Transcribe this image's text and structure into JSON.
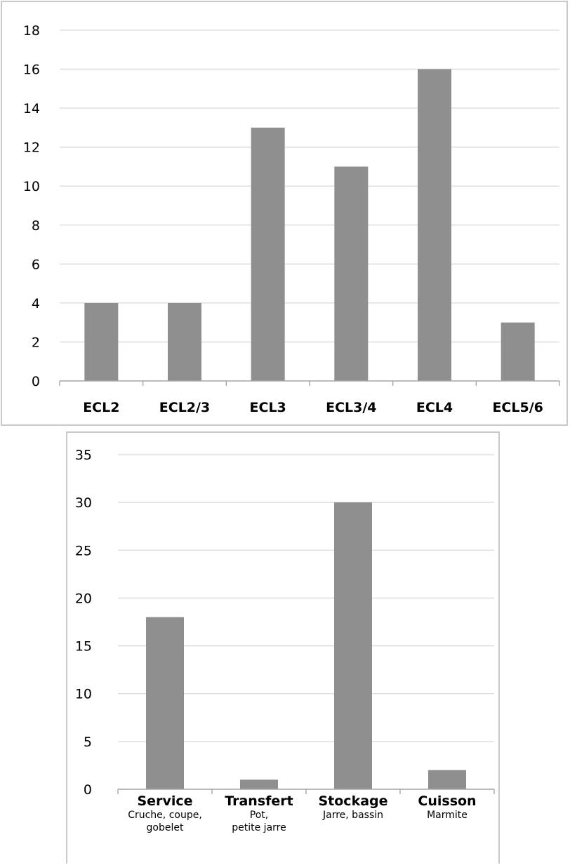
{
  "chart_data": [
    {
      "type": "bar",
      "categories": [
        "ECL2",
        "ECL2/3",
        "ECL3",
        "ECL3/4",
        "ECL4",
        "ECL5/6"
      ],
      "values": [
        4,
        4,
        13,
        11,
        16,
        3
      ],
      "ylim": [
        0,
        18
      ],
      "yticks": [
        0,
        2,
        4,
        6,
        8,
        10,
        12,
        14,
        16,
        18
      ],
      "grid": true,
      "bar_color": "#8f8f8f"
    },
    {
      "type": "bar",
      "categories": [
        {
          "name": "Service",
          "detail": [
            "Cruche, coupe,",
            "gobelet"
          ]
        },
        {
          "name": "Transfert",
          "detail": [
            "Pot,",
            "petite jarre"
          ]
        },
        {
          "name": "Stockage",
          "detail": [
            "Jarre, bassin"
          ]
        },
        {
          "name": "Cuisson",
          "detail": [
            "Marmite"
          ]
        }
      ],
      "values": [
        18,
        1,
        30,
        2
      ],
      "ylim": [
        0,
        35
      ],
      "yticks": [
        0,
        5,
        10,
        15,
        20,
        25,
        30,
        35
      ],
      "grid": true,
      "bar_color": "#8f8f8f"
    }
  ]
}
